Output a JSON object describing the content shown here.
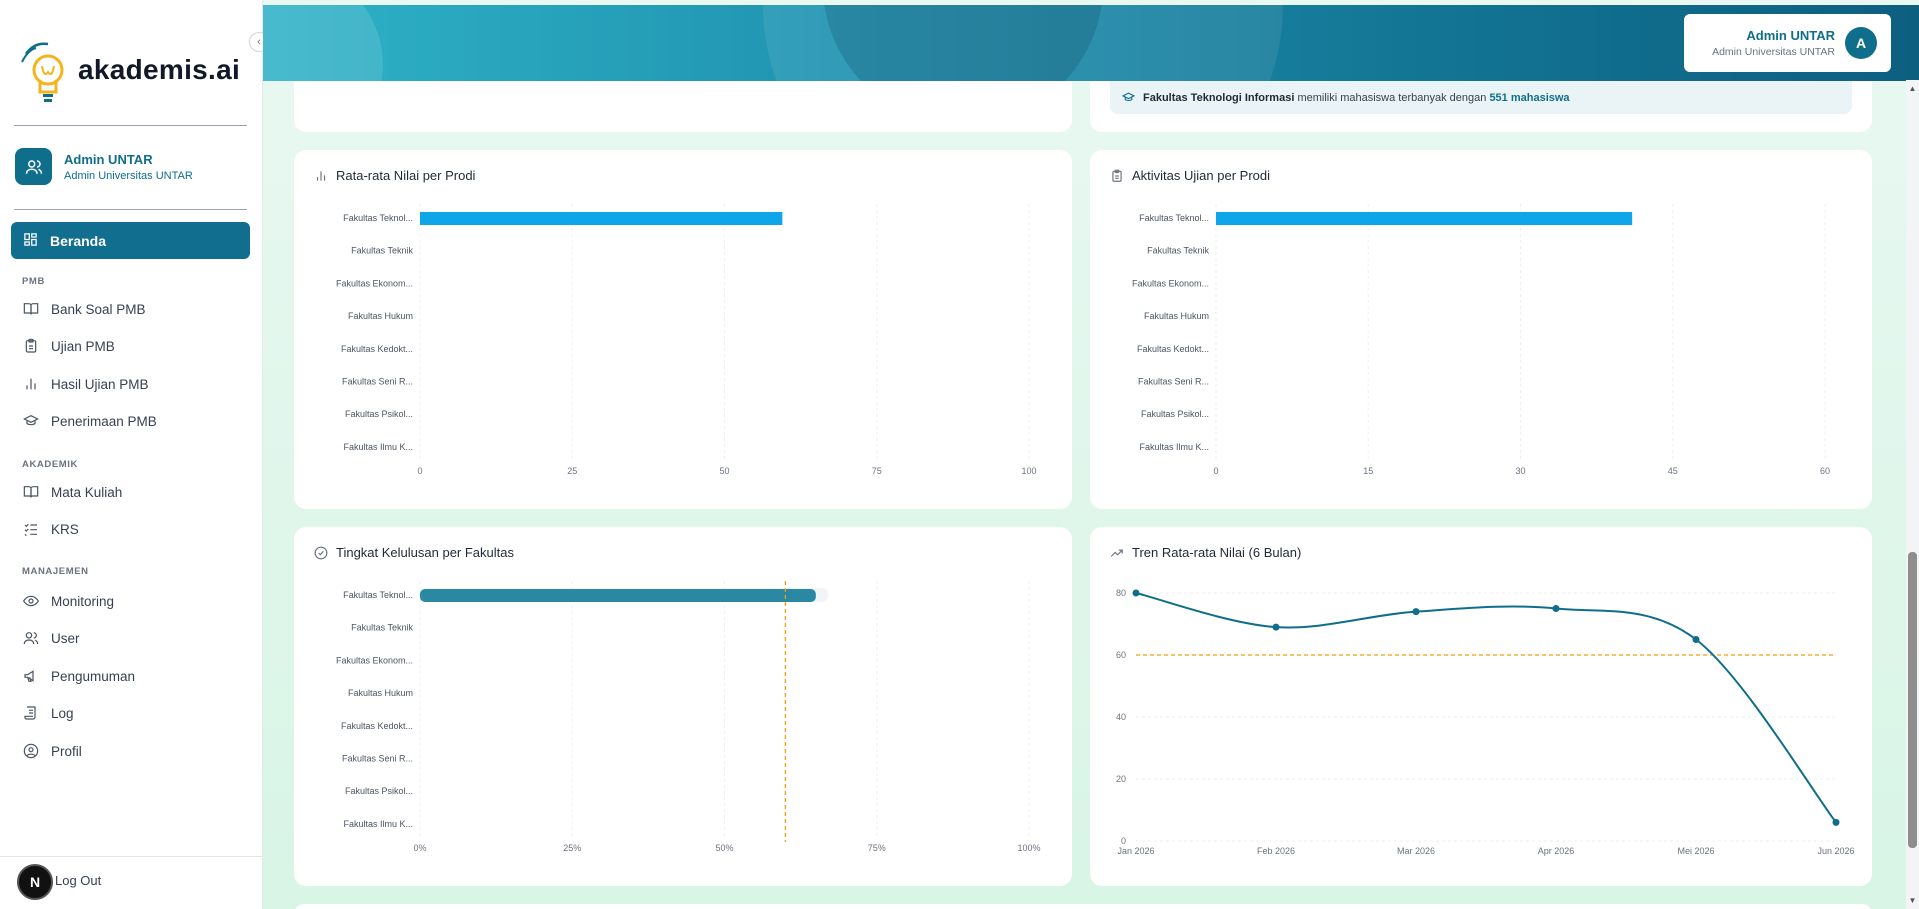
{
  "sidebar": {
    "brand": "akademis.ai",
    "user": {
      "name": "Admin UNTAR",
      "role": "Admin Universitas UNTAR"
    },
    "active": {
      "label": "Beranda",
      "icon": "dashboard-icon"
    },
    "sections": [
      {
        "label": "PMB",
        "items": [
          {
            "label": "Bank Soal PMB",
            "icon": "book-icon"
          },
          {
            "label": "Ujian PMB",
            "icon": "clipboard-icon"
          },
          {
            "label": "Hasil Ujian PMB",
            "icon": "bar-chart-icon"
          },
          {
            "label": "Penerimaan PMB",
            "icon": "graduation-cap-icon"
          }
        ]
      },
      {
        "label": "AKADEMIK",
        "items": [
          {
            "label": "Mata Kuliah",
            "icon": "book-icon"
          },
          {
            "label": "KRS",
            "icon": "list-check-icon"
          }
        ]
      },
      {
        "label": "MANAJEMEN",
        "items": [
          {
            "label": "Monitoring",
            "icon": "eye-icon"
          },
          {
            "label": "User",
            "icon": "users-icon"
          },
          {
            "label": "Pengumuman",
            "icon": "megaphone-icon"
          },
          {
            "label": "Log",
            "icon": "scroll-icon"
          },
          {
            "label": "Profil",
            "icon": "user-circle-icon"
          }
        ]
      }
    ],
    "logout": "Log Out",
    "badge": "N"
  },
  "header": {
    "name": "Admin UNTAR",
    "role": "Admin Universitas UNTAR",
    "avatar": "A"
  },
  "banner": {
    "faculty": "Fakultas Teknologi Informasi",
    "middle": " memiliki mahasiswa terbanyak dengan ",
    "count": "551 mahasiswa"
  },
  "cards": {
    "avg_score": "Rata-rata Nilai per Prodi",
    "exam_activity": "Aktivitas Ujian per Prodi",
    "graduation": "Tingkat Kelulusan per Fakultas",
    "trend": "Tren Rata-rata Nilai (6 Bulan)"
  },
  "chart_data": [
    {
      "type": "bar",
      "orientation": "horizontal",
      "title": "Rata-rata Nilai per Prodi",
      "categories": [
        "Fakultas Teknol...",
        "Fakultas Teknik",
        "Fakultas Ekonom...",
        "Fakultas Hukum",
        "Fakultas Kedokt...",
        "Fakultas Seni R...",
        "Fakultas Psikol...",
        "Fakultas Ilmu K..."
      ],
      "values": [
        59.5,
        0,
        0,
        0,
        0,
        0,
        0,
        0
      ],
      "xlim": [
        0,
        100
      ],
      "xticks": [
        "0",
        "25",
        "50",
        "75",
        "100"
      ],
      "color": "#0ea5e9"
    },
    {
      "type": "bar",
      "orientation": "horizontal",
      "title": "Aktivitas Ujian per Prodi",
      "categories": [
        "Fakultas Teknol...",
        "Fakultas Teknik",
        "Fakultas Ekonom...",
        "Fakultas Hukum",
        "Fakultas Kedokt...",
        "Fakultas Seni R...",
        "Fakultas Psikol...",
        "Fakultas Ilmu K..."
      ],
      "values": [
        41,
        0,
        0,
        0,
        0,
        0,
        0,
        0
      ],
      "xlim": [
        0,
        60
      ],
      "xticks": [
        "0",
        "15",
        "30",
        "45",
        "60"
      ],
      "color": "#0ea5e9"
    },
    {
      "type": "bar",
      "orientation": "horizontal",
      "title": "Tingkat Kelulusan per Fakultas",
      "categories": [
        "Fakultas Teknol...",
        "Fakultas Teknik",
        "Fakultas Ekonom...",
        "Fakultas Hukum",
        "Fakultas Kedokt...",
        "Fakultas Seni R...",
        "Fakultas Psikol...",
        "Fakultas Ilmu K..."
      ],
      "values": [
        65,
        0,
        0,
        0,
        0,
        0,
        0,
        0
      ],
      "xlim": [
        0,
        100
      ],
      "xticks": [
        "0%",
        "25%",
        "50%",
        "75%",
        "100%"
      ],
      "reference_line": 60,
      "color": "#2a88a3"
    },
    {
      "type": "line",
      "title": "Tren Rata-rata Nilai (6 Bulan)",
      "x": [
        "Jan 2026",
        "Feb 2026",
        "Mar 2026",
        "Apr 2026",
        "Mei 2026",
        "Jun 2026"
      ],
      "values": [
        80,
        69,
        74,
        75,
        65,
        6
      ],
      "ylim": [
        0,
        80
      ],
      "yticks": [
        "0",
        "20",
        "40",
        "60",
        "80"
      ],
      "reference_line": 60,
      "color": "#0f6e8c"
    }
  ]
}
